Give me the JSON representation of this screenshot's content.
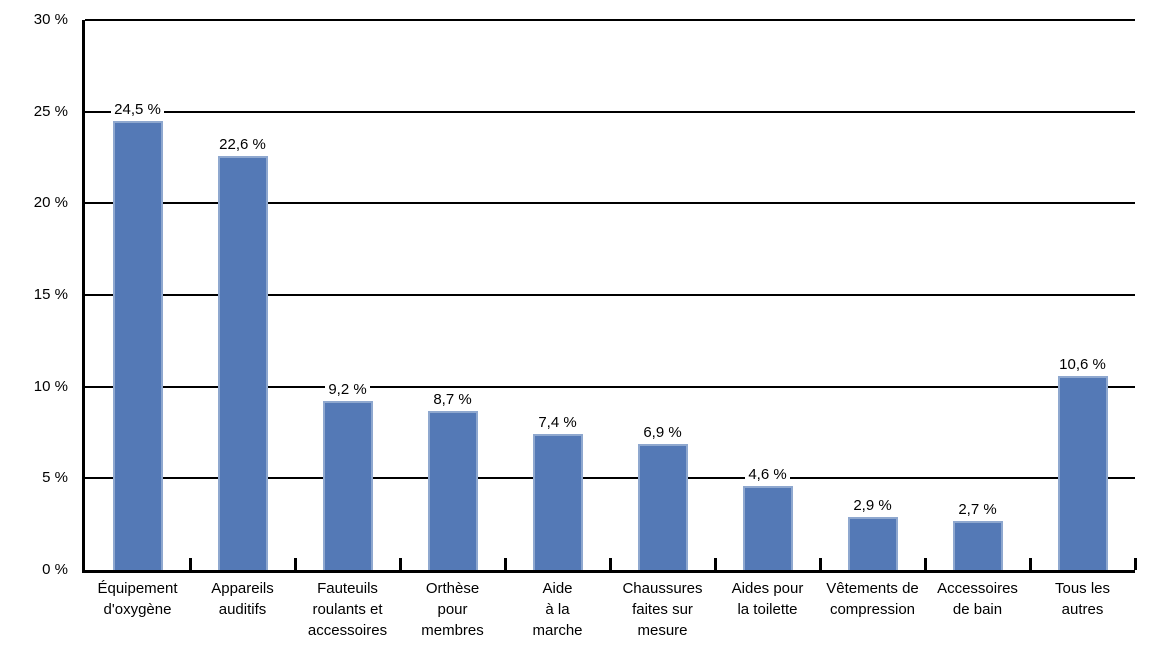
{
  "chart_data": {
    "type": "bar",
    "title": "",
    "xlabel": "",
    "ylabel": "",
    "categories": [
      "Équipement\nd'oxygène",
      "Appareils\nauditifs",
      "Fauteuils\nroulants et\naccessoires",
      "Orthèse\npour\nmembres",
      "Aide\nà la\nmarche",
      "Chaussures\nfaites sur\nmesure",
      "Aides pour\nla toilette",
      "Vêtements de\ncompression",
      "Accessoires\nde bain",
      "Tous les\nautres"
    ],
    "values": [
      24.5,
      22.6,
      9.2,
      8.7,
      7.4,
      6.9,
      4.6,
      2.9,
      2.7,
      10.6
    ],
    "value_labels": [
      "24,5 %",
      "22,6 %",
      "9,2 %",
      "8,7 %",
      "7,4 %",
      "6,9 %",
      "4,6 %",
      "2,9 %",
      "2,7 %",
      "10,6 %"
    ],
    "ylim": [
      0,
      30
    ],
    "y_tick_interval": 5,
    "y_tick_labels": [
      "0 %",
      "5 %",
      "10 %",
      "15 %",
      "20 %",
      "25 %",
      "30 %"
    ],
    "grid": true,
    "legend": null,
    "colors": {
      "bar_fill": "#5479B6",
      "bar_edge": "#8FA8CF",
      "axis": "#000000",
      "gridline": "#000000",
      "text": "#000000",
      "background": "#FFFFFF"
    }
  }
}
